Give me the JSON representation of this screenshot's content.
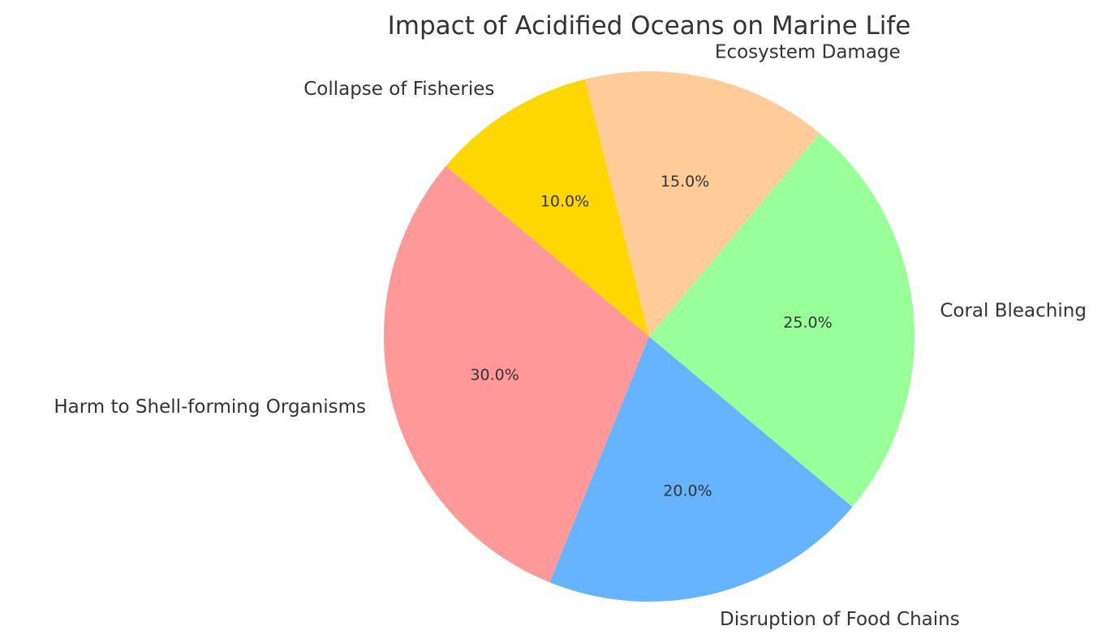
{
  "chart_data": {
    "type": "pie",
    "title": "Impact of Acidified Oceans on Marine Life",
    "slices": [
      {
        "label": "Harm to Shell-forming Organisms",
        "value": 30,
        "pct_label": "30.0%",
        "color": "#ff9999"
      },
      {
        "label": "Disruption of Food Chains",
        "value": 20,
        "pct_label": "20.0%",
        "color": "#66b3ff"
      },
      {
        "label": "Coral Bleaching",
        "value": 25,
        "pct_label": "25.0%",
        "color": "#99ff99"
      },
      {
        "label": "Ecosystem Damage",
        "value": 15,
        "pct_label": "15.0%",
        "color": "#ffcc99"
      },
      {
        "label": "Collapse of Fisheries",
        "value": 10,
        "pct_label": "10.0%",
        "color": "#ffd700"
      }
    ],
    "start_angle_deg": 140,
    "direction": "counterclockwise",
    "legend": "none"
  }
}
